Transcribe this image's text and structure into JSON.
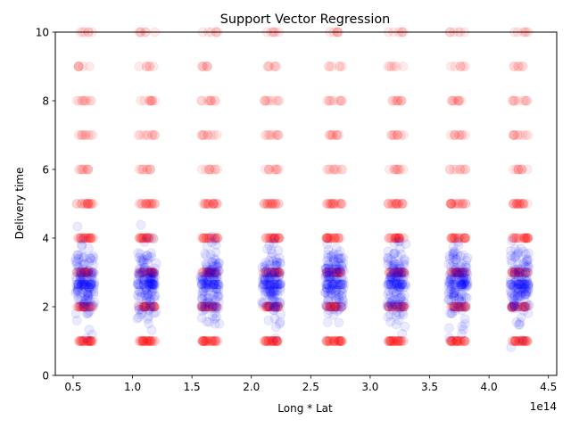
{
  "chart_data": {
    "type": "scatter",
    "title": "Support Vector Regression",
    "xlabel": "Long * Lat",
    "ylabel": "Delivery time",
    "x_offset_label": "1e14",
    "xlim": [
      0.35,
      4.57
    ],
    "ylim": [
      0,
      10
    ],
    "x_ticks": [
      0.5,
      1.0,
      1.5,
      2.0,
      2.5,
      3.0,
      3.5,
      4.0,
      4.5
    ],
    "x_tick_labels": [
      "0.5",
      "1.0",
      "1.5",
      "2.0",
      "2.5",
      "3.0",
      "3.5",
      "4.0",
      "4.5"
    ],
    "y_ticks": [
      0,
      2,
      4,
      6,
      8,
      10
    ],
    "y_tick_labels": [
      "0",
      "2",
      "4",
      "6",
      "8",
      "10"
    ],
    "grid": false,
    "legend": "none",
    "clusters_x": [
      0.6,
      1.12,
      1.65,
      2.17,
      2.7,
      3.22,
      3.74,
      4.26
    ],
    "series": [
      {
        "color": "#ff0000",
        "marker_alpha": 0.08,
        "y_levels": [
          1,
          2,
          3,
          4,
          5,
          6,
          7,
          8,
          9,
          10
        ],
        "level_weights": [
          10,
          10,
          10,
          8,
          6,
          3,
          3,
          3,
          2,
          2
        ]
      },
      {
        "color": "#0000ff",
        "marker_alpha": 0.08,
        "y_center": 2.65,
        "y_spread": 0.55,
        "y_range": [
          0.7,
          5.6
        ]
      }
    ],
    "colors": {
      "axes": "#000000",
      "background": "#ffffff"
    }
  }
}
